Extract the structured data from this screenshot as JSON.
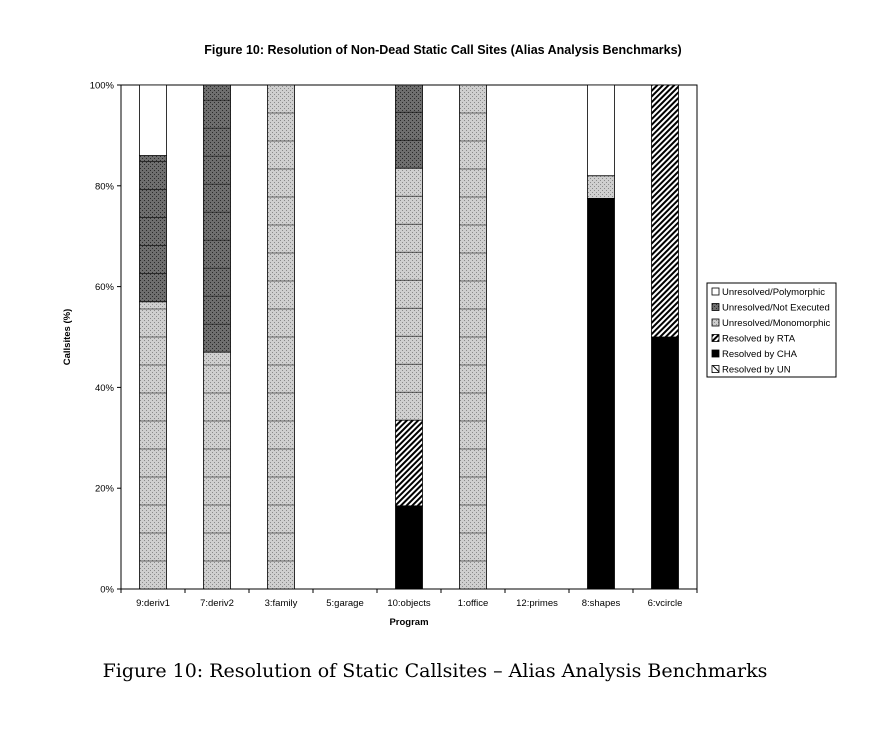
{
  "caption": "Figure 10: Resolution of Static Callsites – Alias Analysis Benchmarks",
  "chart_data": {
    "type": "bar",
    "stacked": true,
    "title": "Figure 10: Resolution of Non-Dead Static Call Sites (Alias Analysis Benchmarks)",
    "xlabel": "Program",
    "ylabel": "Callsites (%)",
    "ylim": [
      0,
      100
    ],
    "yticks": [
      "0%",
      "20%",
      "40%",
      "60%",
      "80%",
      "100%"
    ],
    "categories": [
      "9:deriv1",
      "7:deriv2",
      "3:family",
      "5:garage",
      "10:objects",
      "1:office",
      "12:primes",
      "8:shapes",
      "6:vcircle"
    ],
    "series": [
      {
        "name": "Resolved by UN",
        "pattern": "diag-light",
        "values": [
          0,
          0,
          0,
          0,
          0,
          0,
          0,
          0,
          0
        ]
      },
      {
        "name": "Resolved by CHA",
        "pattern": "solid-black",
        "values": [
          0,
          0,
          0,
          0,
          16.5,
          0,
          0,
          77.5,
          50
        ]
      },
      {
        "name": "Resolved by RTA",
        "pattern": "diag-dense",
        "values": [
          0,
          0,
          0,
          0,
          17,
          0,
          0,
          0,
          50
        ]
      },
      {
        "name": "Unresolved/Monomorphic",
        "pattern": "grey-light",
        "values": [
          57,
          47,
          100,
          0,
          50,
          100,
          0,
          4.5,
          0
        ]
      },
      {
        "name": "Unresolved/Not Executed",
        "pattern": "grey-dark",
        "values": [
          29,
          53,
          0,
          0,
          16.5,
          0,
          0,
          0,
          0
        ]
      },
      {
        "name": "Unresolved/Polymorphic",
        "pattern": "white",
        "values": [
          14,
          0,
          0,
          0,
          0,
          0,
          0,
          18,
          0
        ]
      }
    ],
    "legend_order": [
      "Unresolved/Polymorphic",
      "Unresolved/Not Executed",
      "Unresolved/Monomorphic",
      "Resolved by RTA",
      "Resolved by CHA",
      "Resolved by UN"
    ],
    "legend_position": "right",
    "grid": false
  }
}
